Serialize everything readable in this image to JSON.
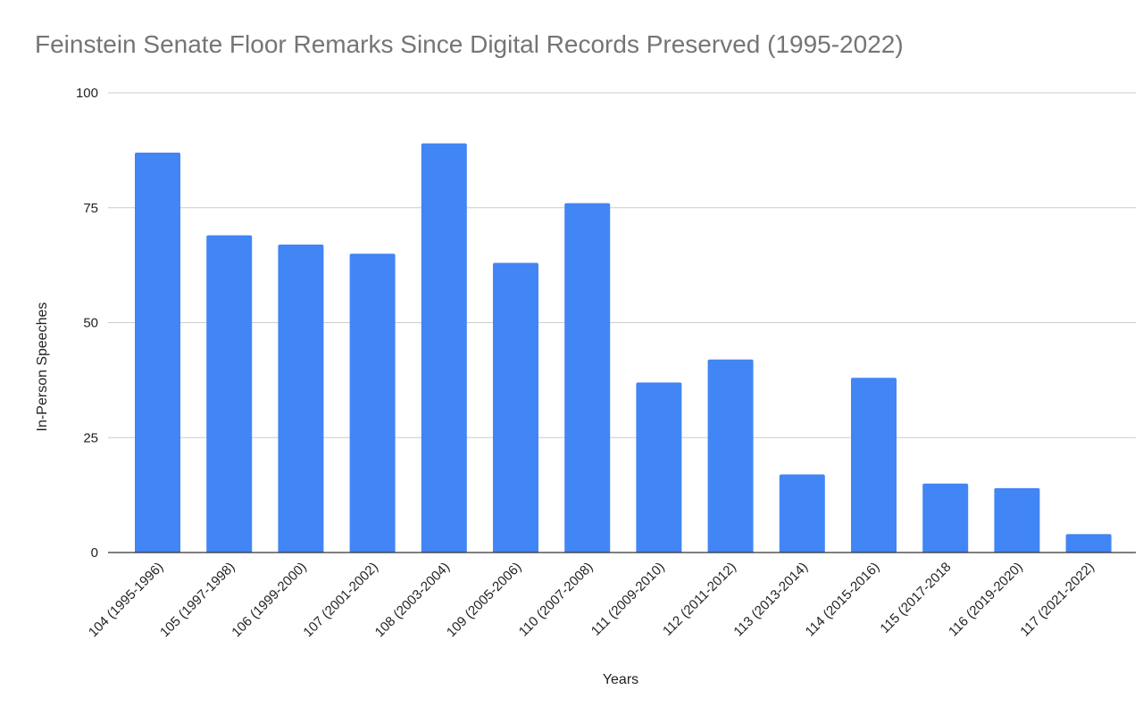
{
  "chart_data": {
    "type": "bar",
    "title": "Feinstein Senate Floor Remarks Since Digital Records Preserved (1995-2022)",
    "xlabel": "Years",
    "ylabel": "In-Person Speeches",
    "ylim": [
      0,
      100
    ],
    "yticks": [
      0,
      25,
      50,
      75,
      100
    ],
    "grid": true,
    "legend": "none",
    "categories": [
      "104 (1995-1996)",
      "105 (1997-1998)",
      "106 (1999-2000)",
      "107 (2001-2002)",
      "108 (2003-2004)",
      "109 (2005-2006)",
      "110 (2007-2008)",
      "111 (2009-2010)",
      "112 (2011-2012)",
      "113 (2013-2014)",
      "114 (2015-2016)",
      "115 (2017-2018",
      "116 (2019-2020)",
      "117 (2021-2022)"
    ],
    "values": [
      87,
      69,
      67,
      65,
      89,
      63,
      76,
      37,
      42,
      17,
      38,
      15,
      14,
      4
    ],
    "colors": {
      "bar": "#4285f4",
      "grid": "#cccccc",
      "axis": "#333333"
    }
  }
}
